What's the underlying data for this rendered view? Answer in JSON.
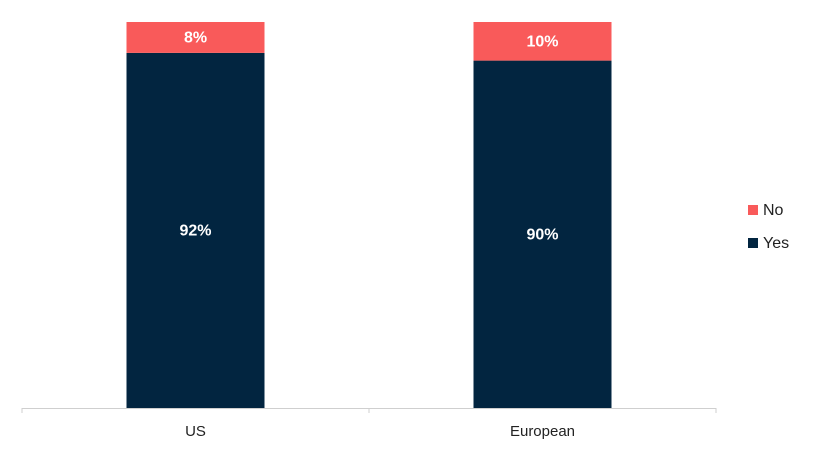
{
  "chart_data": {
    "type": "bar",
    "stacked": true,
    "categories": [
      "US",
      "European"
    ],
    "series": [
      {
        "name": "Yes",
        "color": "#022540",
        "values": [
          92,
          90
        ],
        "value_labels": [
          "92%",
          "90%"
        ]
      },
      {
        "name": "No",
        "color": "#f95a5a",
        "values": [
          8,
          10
        ],
        "value_labels": [
          "8%",
          "10%"
        ]
      }
    ],
    "legend": "right"
  }
}
